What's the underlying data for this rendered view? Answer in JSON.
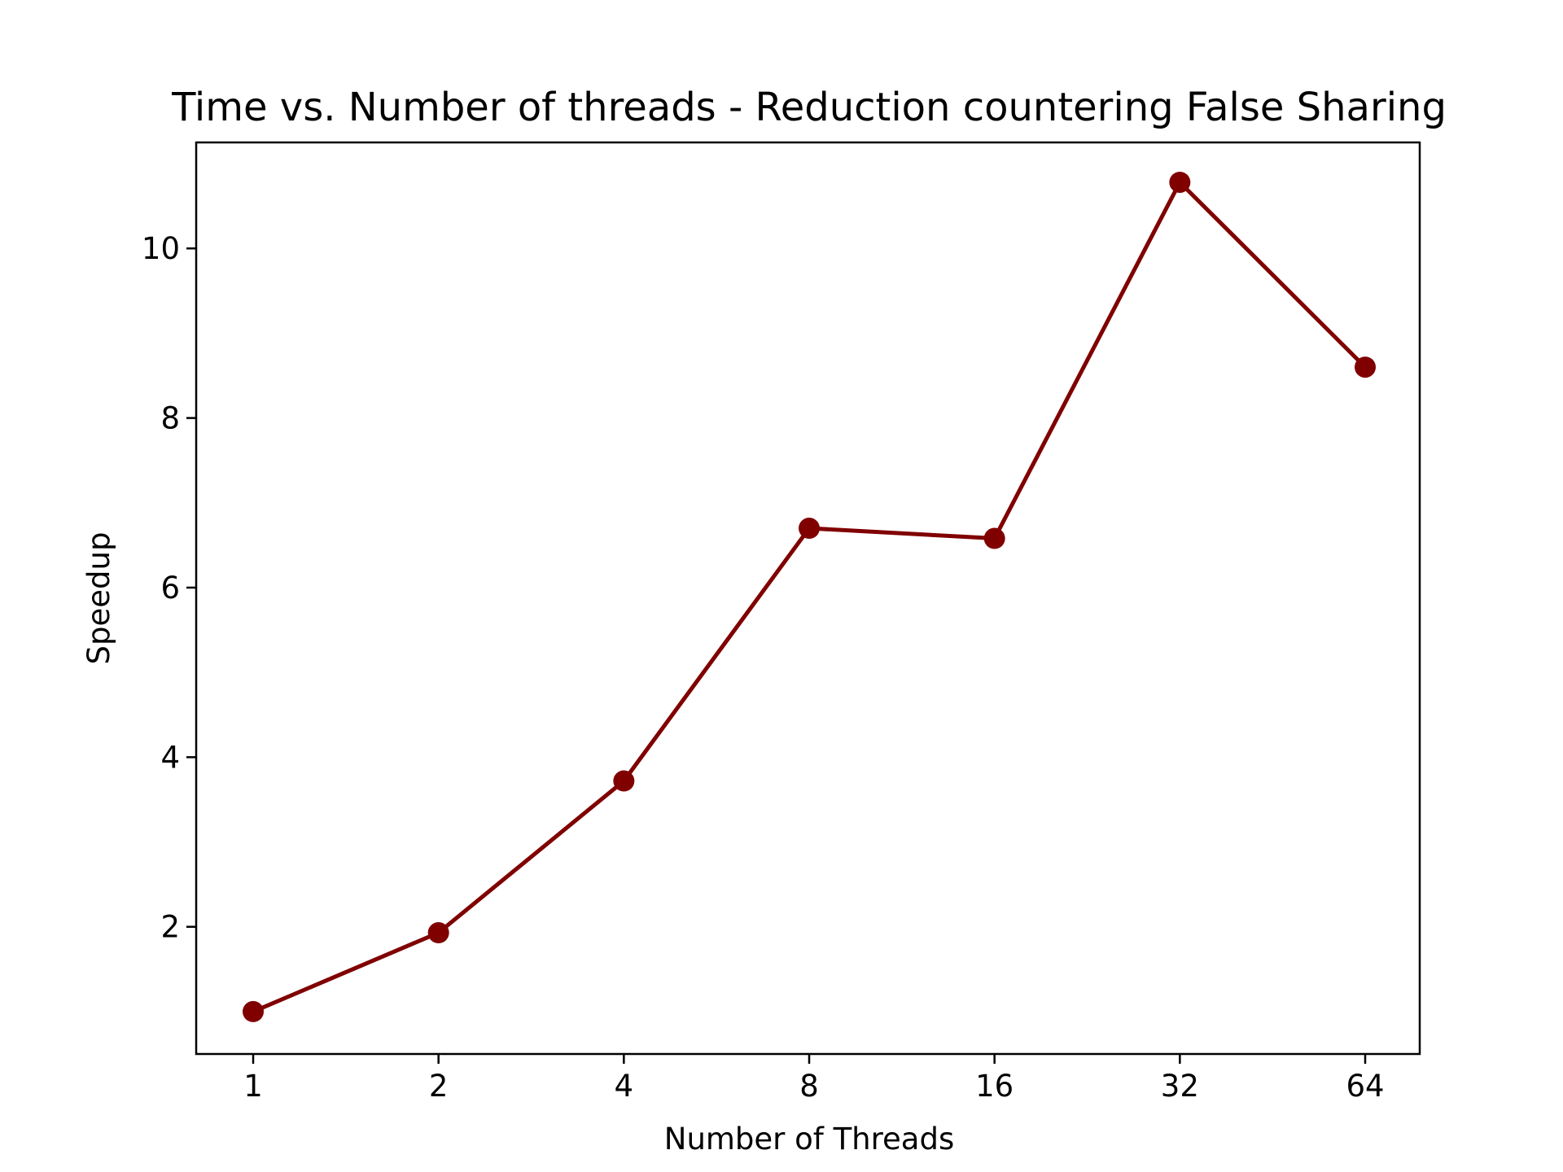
{
  "chart_data": {
    "type": "line",
    "title": "Time vs. Number of threads - Reduction countering False Sharing",
    "xlabel": "Number of Threads",
    "ylabel": "Speedup",
    "categories": [
      "1",
      "2",
      "4",
      "8",
      "16",
      "32",
      "64"
    ],
    "series": [
      {
        "values": [
          1.0,
          1.93,
          3.72,
          6.7,
          6.58,
          10.78,
          8.6
        ],
        "color": "#800000",
        "marker": "circle"
      }
    ],
    "ylim": [
      0.5,
      11.25
    ],
    "yticks": [
      "2",
      "4",
      "6",
      "8",
      "10"
    ],
    "grid": false
  }
}
